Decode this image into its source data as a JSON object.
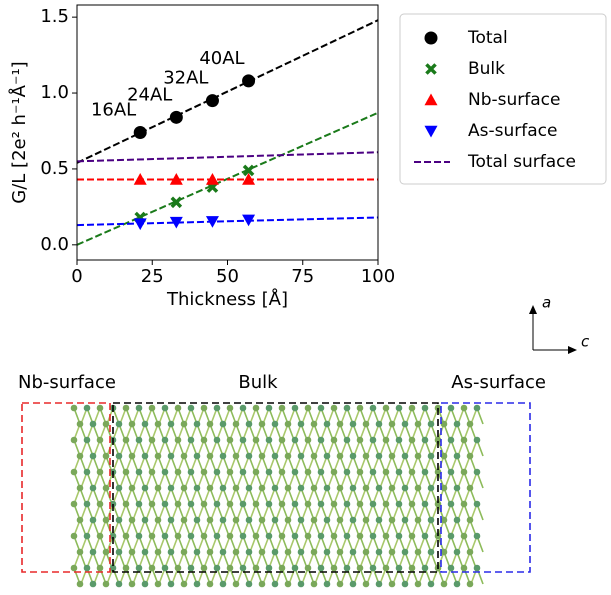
{
  "chart_data": {
    "type": "scatter",
    "xlabel": "Thickness [Å]",
    "ylabel": "G/L [2e² h⁻¹Å⁻¹]",
    "xlim": [
      0,
      100
    ],
    "ylim": [
      -0.1,
      1.58
    ],
    "xticks": [
      0,
      25,
      50,
      75,
      100
    ],
    "yticks": [
      {
        "value": 0,
        "label": "0.0"
      },
      0.5,
      {
        "value": 1,
        "label": "1.0"
      },
      1.5
    ],
    "x": [
      21,
      33,
      45,
      57
    ],
    "series": [
      {
        "name": "Total",
        "color": "#000000",
        "marker": "o",
        "values": [
          0.74,
          0.84,
          0.95,
          1.08
        ]
      },
      {
        "name": "Bulk",
        "color": "#1a7a1a",
        "marker": "x",
        "values": [
          0.18,
          0.28,
          0.38,
          0.49
        ]
      },
      {
        "name": "Nb-surface",
        "color": "#ff0000",
        "marker": "^",
        "values": [
          0.43,
          0.43,
          0.43,
          0.43
        ]
      },
      {
        "name": "As-surface",
        "color": "#0000ff",
        "marker": "v",
        "values": [
          0.14,
          0.15,
          0.155,
          0.165
        ]
      }
    ],
    "point_labels": [
      "16AL",
      "24AL",
      "32AL",
      "40AL"
    ],
    "fits": [
      {
        "color": "#000000",
        "x": [
          0,
          100
        ],
        "values": [
          0.54,
          1.48
        ]
      },
      {
        "color": "#1a7a1a",
        "x": [
          0,
          100
        ],
        "values": [
          0,
          0.87
        ]
      },
      {
        "color": "#ff0000",
        "x": [
          0,
          100
        ],
        "values": [
          0.43,
          0.43
        ]
      },
      {
        "color": "#0000ff",
        "x": [
          0,
          100
        ],
        "values": [
          0.13,
          0.18
        ]
      },
      {
        "name": "Total surface",
        "color": "#4b0082",
        "x": [
          0,
          100
        ],
        "values": [
          0.55,
          0.61
        ]
      }
    ]
  },
  "structure": {
    "regions": [
      "Nb-surface",
      "Bulk",
      "As-surface"
    ],
    "axes": [
      "a",
      "c"
    ]
  }
}
